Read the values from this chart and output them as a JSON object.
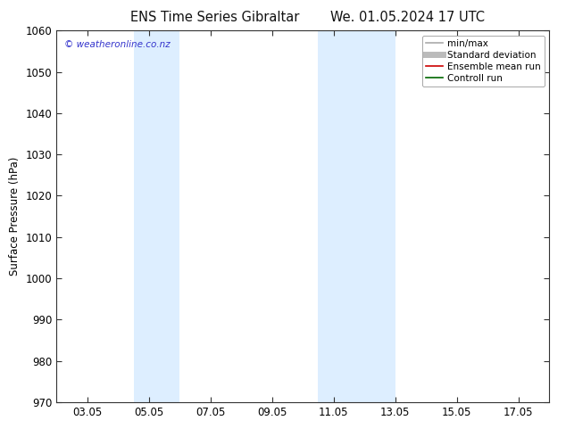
{
  "title_left": "ENS Time Series Gibraltar",
  "title_right": "We. 01.05.2024 17 UTC",
  "ylabel": "Surface Pressure (hPa)",
  "ylim": [
    970,
    1060
  ],
  "yticks": [
    970,
    980,
    990,
    1000,
    1010,
    1020,
    1030,
    1040,
    1050,
    1060
  ],
  "xlim": [
    2.0,
    18.0
  ],
  "xtick_labels": [
    "03.05",
    "05.05",
    "07.05",
    "09.05",
    "11.05",
    "13.05",
    "15.05",
    "17.05"
  ],
  "xtick_positions": [
    3,
    5,
    7,
    9,
    11,
    13,
    15,
    17
  ],
  "shaded_bands": [
    {
      "xmin": 4.5,
      "xmax": 6.0
    },
    {
      "xmin": 10.5,
      "xmax": 13.0
    }
  ],
  "shaded_color": "#ddeeff",
  "watermark_text": "© weatheronline.co.nz",
  "watermark_color": "#3333cc",
  "legend_items": [
    {
      "label": "min/max",
      "color": "#aaaaaa",
      "lw": 1.2
    },
    {
      "label": "Standard deviation",
      "color": "#bbbbbb",
      "lw": 5
    },
    {
      "label": "Ensemble mean run",
      "color": "#cc0000",
      "lw": 1.2
    },
    {
      "label": "Controll run",
      "color": "#006600",
      "lw": 1.2
    }
  ],
  "bg_color": "#ffffff",
  "tick_color": "#333333",
  "spine_color": "#333333",
  "font_size": 8.5,
  "title_font_size": 10.5,
  "ylabel_font_size": 8.5
}
